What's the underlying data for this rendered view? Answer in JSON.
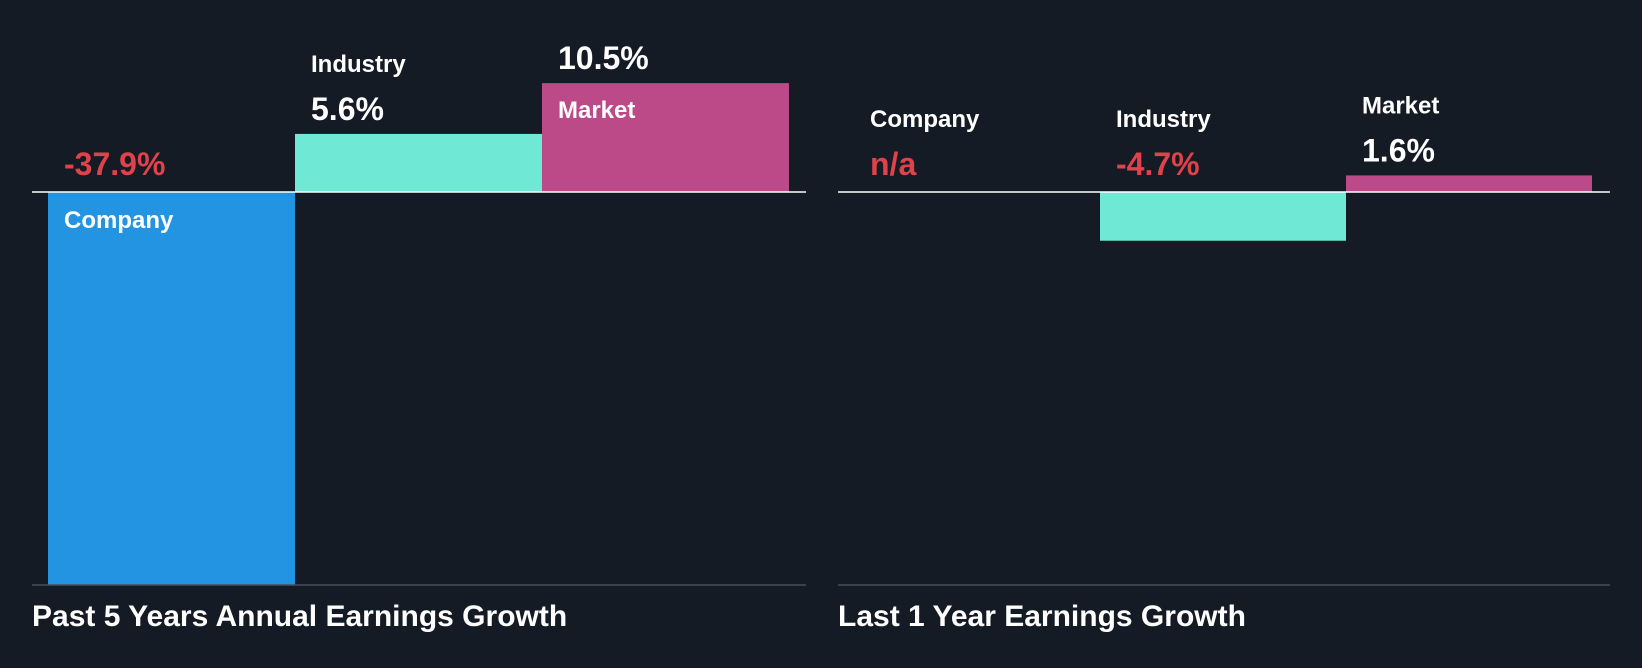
{
  "colors": {
    "background": "#151b24",
    "company": "#2394e2",
    "industry": "#6fe8d6",
    "market": "#bc4a88",
    "negative_text": "#e0424b",
    "positive_text": "#ffffff",
    "axis": "#ffffff",
    "baseline": "#4a5059"
  },
  "chart_data": [
    {
      "type": "bar",
      "title": "Past 5 Years Annual Earnings Growth",
      "categories": [
        "Company",
        "Industry",
        "Market"
      ],
      "values": [
        -37.9,
        5.6,
        10.5
      ],
      "value_labels": [
        "-37.9%",
        "5.6%",
        "10.5%"
      ],
      "unit": "%",
      "ylim": [
        -37.9,
        10.5
      ]
    },
    {
      "type": "bar",
      "title": "Last 1 Year Earnings Growth",
      "categories": [
        "Company",
        "Industry",
        "Market"
      ],
      "values": [
        null,
        -4.7,
        1.6
      ],
      "value_labels": [
        "n/a",
        "-4.7%",
        "1.6%"
      ],
      "unit": "%",
      "ylim": [
        -37.9,
        10.5
      ]
    }
  ]
}
